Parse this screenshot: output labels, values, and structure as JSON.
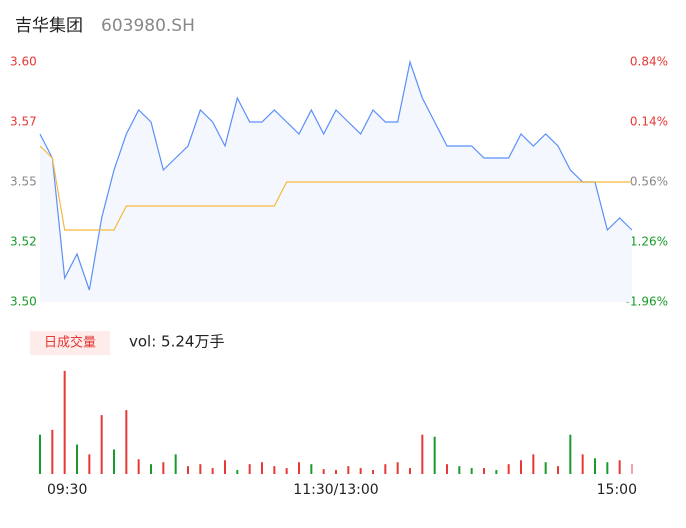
{
  "chart_data": {
    "type": "intraday",
    "title": "吉华集团",
    "subtitle": "603980.SH",
    "x": [
      0,
      5,
      10,
      15,
      20,
      25,
      30,
      35,
      40,
      45,
      50,
      55,
      60,
      65,
      70,
      75,
      80,
      85,
      90,
      95,
      100,
      105,
      110,
      115,
      120,
      125,
      130,
      135,
      140,
      145,
      150,
      155,
      160,
      165,
      170,
      175,
      180,
      185,
      190,
      195,
      200,
      205,
      210,
      215,
      220,
      225,
      230,
      235,
      240
    ],
    "xlim": [
      0,
      240
    ],
    "xticks": [
      {
        "value": 0,
        "label": "09:30"
      },
      {
        "value": 120,
        "label": "11:30/13:00"
      },
      {
        "value": 240,
        "label": "15:00"
      }
    ],
    "series": [
      {
        "color": "#5b8ff9",
        "values": [
          3.57,
          3.56,
          3.51,
          3.52,
          3.505,
          3.535,
          3.555,
          3.57,
          3.58,
          3.575,
          3.555,
          3.56,
          3.565,
          3.58,
          3.575,
          3.565,
          3.585,
          3.575,
          3.575,
          3.58,
          3.575,
          3.57,
          3.58,
          3.57,
          3.58,
          3.575,
          3.57,
          3.58,
          3.575,
          3.575,
          3.6,
          3.585,
          3.575,
          3.565,
          3.565,
          3.565,
          3.56,
          3.56,
          3.56,
          3.57,
          3.565,
          3.57,
          3.565,
          3.555,
          3.55,
          3.55,
          3.53,
          3.535,
          3.53
        ]
      },
      {
        "color": "#f5b940",
        "values": [
          3.565,
          3.56,
          3.53,
          3.53,
          3.53,
          3.53,
          3.53,
          3.54,
          3.54,
          3.54,
          3.54,
          3.54,
          3.54,
          3.54,
          3.54,
          3.54,
          3.54,
          3.54,
          3.54,
          3.54,
          3.55,
          3.55,
          3.55,
          3.55,
          3.55,
          3.55,
          3.55,
          3.55,
          3.55,
          3.55,
          3.55,
          3.55,
          3.55,
          3.55,
          3.55,
          3.55,
          3.55,
          3.55,
          3.55,
          3.55,
          3.55,
          3.55,
          3.55,
          3.55,
          3.55,
          3.55,
          3.55,
          3.55,
          3.55
        ]
      }
    ],
    "ylim": [
      3.5,
      3.6
    ],
    "yticks": [
      {
        "value": 3.5,
        "label": "3.50"
      },
      {
        "value": 3.525,
        "label": "3.52"
      },
      {
        "value": 3.55,
        "label": "3.55"
      },
      {
        "value": 3.575,
        "label": "3.57"
      },
      {
        "value": 3.6,
        "label": "3.60"
      }
    ],
    "y2lim": [
      -1.96,
      0.84
    ],
    "y2ticks": [
      {
        "value": -1.96,
        "label": "-1.96%"
      },
      {
        "value": -1.26,
        "label": "-1.26%"
      },
      {
        "value": -0.56,
        "label": "-0.56%"
      },
      {
        "value": 0.14,
        "label": "0.14%"
      },
      {
        "value": 0.84,
        "label": "0.84%"
      }
    ],
    "tick_colors": [
      "#1a9a2a",
      "#1a9a2a",
      "#888888",
      "#e53935",
      "#e53935"
    ],
    "volume_title": "日成交量",
    "volume_label": "vol: 5.24万手",
    "volume": [
      40,
      45,
      105,
      30,
      20,
      60,
      25,
      65,
      15,
      10,
      12,
      20,
      8,
      10,
      6,
      14,
      4,
      10,
      12,
      8,
      6,
      12,
      10,
      5,
      4,
      8,
      6,
      4,
      10,
      12,
      6,
      40,
      38,
      10,
      8,
      6,
      6,
      4,
      10,
      14,
      20,
      12,
      8,
      40,
      20,
      16,
      12,
      14,
      10
    ],
    "volume_lim": [
      0,
      110
    ],
    "bar_colors": [
      "#1a9a2a",
      "#e53935",
      "#e53935",
      "#1a9a2a",
      "#e53935",
      "#e53935",
      "#1a9a2a",
      "#e53935",
      "#e53935",
      "#1a9a2a",
      "#e53935",
      "#1a9a2a",
      "#e53935",
      "#e53935",
      "#e53935",
      "#e53935",
      "#1a9a2a",
      "#e53935",
      "#e53935",
      "#e53935",
      "#e53935",
      "#e53935",
      "#1a9a2a",
      "#e53935",
      "#e53935",
      "#e53935",
      "#e53935",
      "#e53935",
      "#e53935",
      "#e53935",
      "#e53935",
      "#e53935",
      "#1a9a2a",
      "#e53935",
      "#1a9a2a",
      "#1a9a2a",
      "#e53935",
      "#1a9a2a",
      "#e53935",
      "#e53935",
      "#e53935",
      "#1a9a2a",
      "#e53935",
      "#1a9a2a",
      "#e53935",
      "#1a9a2a",
      "#1a9a2a",
      "#e53935",
      "#f4a0a0"
    ]
  }
}
